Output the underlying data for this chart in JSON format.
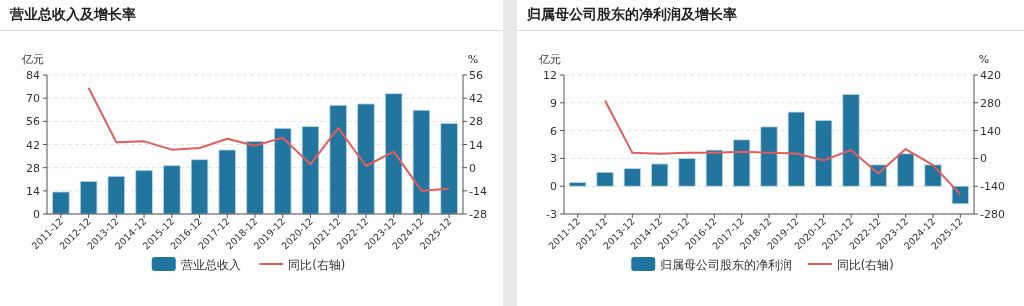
{
  "chart_data": [
    {
      "type": "bar",
      "title": "营业总收入及增长率",
      "ylabel": "亿元",
      "y2label": "%",
      "categories": [
        "2011-12",
        "2012-12",
        "2013-12",
        "2014-12",
        "2015-12",
        "2016-12",
        "2017-12",
        "2018-12",
        "2019-12",
        "2020-12",
        "2021-12",
        "2022-12",
        "2023-12",
        "2024-12",
        "2025-12"
      ],
      "series": [
        {
          "name": "营业总收入",
          "color": "#21759f",
          "values": [
            13.3,
            19.7,
            22.8,
            26.4,
            29.2,
            32.8,
            38.7,
            43.9,
            51.8,
            52.8,
            65.7,
            66.5,
            72.7,
            62.7,
            54.8
          ]
        },
        {
          "name": "同比(右轴)",
          "type": "line",
          "axis": "y2",
          "color": "#e45c5c",
          "values": [
            null,
            48.3,
            15.3,
            15.9,
            10.9,
            11.9,
            17.5,
            13.3,
            18.1,
            2.0,
            24.0,
            1.0,
            9.7,
            -13.9,
            -12.7
          ]
        }
      ],
      "ylim": [
        0,
        84
      ],
      "yticks": [
        0,
        14,
        28,
        42,
        56,
        70,
        84
      ],
      "y2lim": [
        -28,
        56
      ],
      "y2ticks": [
        -28,
        -14,
        0,
        14,
        28,
        42,
        56
      ],
      "grid": "y",
      "legend": "bottom"
    },
    {
      "type": "bar",
      "title": "归属母公司股东的净利润及增长率",
      "ylabel": "亿元",
      "y2label": "%",
      "categories": [
        "2011-12",
        "2012-12",
        "2013-12",
        "2014-12",
        "2015-12",
        "2016-12",
        "2017-12",
        "2018-12",
        "2019-12",
        "2020-12",
        "2021-12",
        "2022-12",
        "2023-12",
        "2024-12",
        "2025-12"
      ],
      "series": [
        {
          "name": "归属母公司股东的净利润",
          "color": "#21759f",
          "values": [
            0.4,
            1.5,
            1.9,
            2.4,
            3.0,
            3.9,
            5.0,
            6.4,
            8.0,
            7.1,
            9.9,
            2.3,
            3.5,
            2.3,
            -1.9
          ]
        },
        {
          "name": "同比(右轴)",
          "type": "line",
          "axis": "y2",
          "color": "#e45c5c",
          "values": [
            null,
            292,
            28,
            24,
            28,
            28,
            34,
            28,
            25,
            -10,
            42,
            -76,
            47,
            -34,
            -181
          ]
        }
      ],
      "ylim": [
        -3,
        12
      ],
      "yticks": [
        -3,
        0,
        3,
        6,
        9,
        12
      ],
      "y2lim": [
        -280,
        420
      ],
      "y2ticks": [
        -280,
        -140,
        0,
        140,
        280,
        420
      ],
      "grid": "y",
      "legend": "bottom"
    }
  ]
}
